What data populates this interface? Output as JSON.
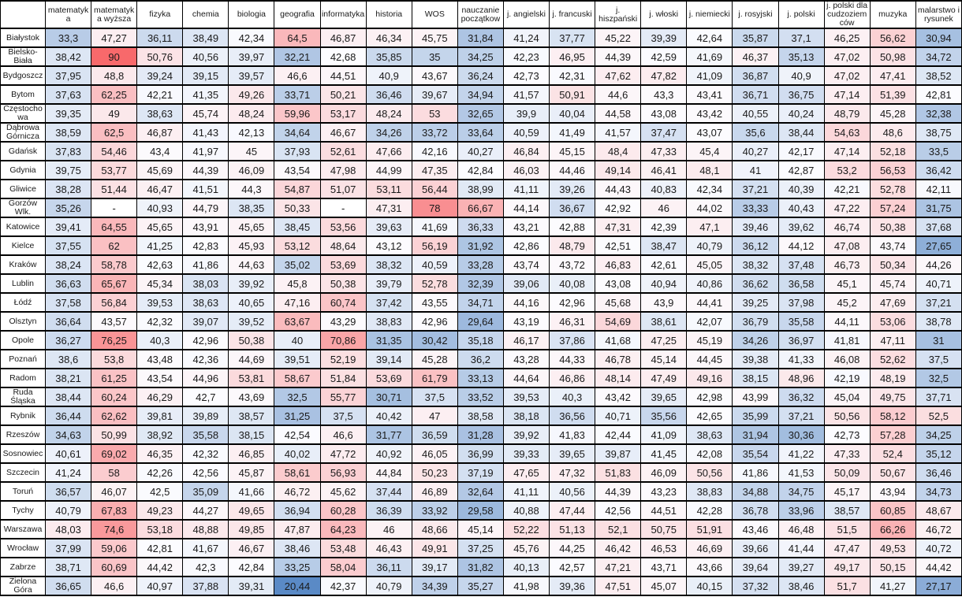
{
  "chart_data": {
    "type": "heatmap",
    "columns": [
      "matematyka",
      "matematyka wyższa",
      "fizyka",
      "chemia",
      "biologia",
      "geografia",
      "informatyka",
      "historia",
      "WOS",
      "nauczanie początkow",
      "j. angielski",
      "j. francuski",
      "j. hiszpański",
      "j. włoski",
      "j. niemiecki",
      "j. rosyjski",
      "j. polski",
      "j. polski dla cudzoziemców",
      "muzyka",
      "malarstwo i rysunek"
    ],
    "rows": [
      "Białystok",
      "Bielsko-Biała",
      "Bydgoszcz",
      "Bytom",
      "Częstochowa",
      "Dąbrowa Górnicza",
      "Gdańsk",
      "Gdynia",
      "Gliwice",
      "Gorzów Wlk.",
      "Katowice",
      "Kielce",
      "Kraków",
      "Lublin",
      "Łódź",
      "Olsztyn",
      "Opole",
      "Poznań",
      "Radom",
      "Ruda Śląska",
      "Rybnik",
      "Rzeszów",
      "Sosnowiec",
      "Szczecin",
      "Toruń",
      "Tychy",
      "Warszawa",
      "Wrocław",
      "Zabrze",
      "Zielona Góra"
    ],
    "values": [
      [
        "33,3",
        "47,27",
        "36,11",
        "38,49",
        "42,34",
        "64,5",
        "46,87",
        "46,34",
        "45,75",
        "31,84",
        "41,24",
        "37,77",
        "45,22",
        "39,39",
        "42,64",
        "35,87",
        "37,1",
        "46,25",
        "56,62",
        "30,94"
      ],
      [
        "38,42",
        "90",
        "50,76",
        "40,56",
        "39,97",
        "32,21",
        "42,68",
        "35,85",
        "35",
        "34,25",
        "42,23",
        "46,95",
        "44,39",
        "42,59",
        "41,69",
        "46,37",
        "35,13",
        "47,02",
        "50,98",
        "34,72"
      ],
      [
        "37,95",
        "48,8",
        "39,24",
        "39,15",
        "39,57",
        "46,6",
        "44,51",
        "40,9",
        "43,67",
        "36,24",
        "42,73",
        "42,31",
        "47,62",
        "47,82",
        "41,09",
        "36,87",
        "40,9",
        "47,02",
        "47,41",
        "38,52"
      ],
      [
        "37,63",
        "62,25",
        "42,21",
        "41,35",
        "49,26",
        "33,71",
        "50,21",
        "36,46",
        "39,67",
        "34,94",
        "41,57",
        "50,91",
        "44,6",
        "43,3",
        "43,41",
        "36,71",
        "36,75",
        "47,14",
        "51,39",
        "42,81"
      ],
      [
        "39,35",
        "49",
        "38,63",
        "45,74",
        "48,24",
        "59,96",
        "53,17",
        "48,24",
        "53",
        "32,65",
        "39,9",
        "40,04",
        "44,58",
        "43,08",
        "43,42",
        "40,55",
        "40,24",
        "48,79",
        "45,28",
        "32,38"
      ],
      [
        "38,59",
        "62,5",
        "46,87",
        "41,43",
        "42,13",
        "34,64",
        "46,67",
        "34,26",
        "33,72",
        "33,64",
        "40,59",
        "41,49",
        "41,57",
        "37,47",
        "43,07",
        "35,6",
        "38,44",
        "54,63",
        "48,6",
        "38,75"
      ],
      [
        "37,83",
        "54,46",
        "43,4",
        "41,97",
        "45",
        "37,93",
        "52,61",
        "47,66",
        "42,16",
        "40,27",
        "46,84",
        "45,15",
        "48,4",
        "47,33",
        "45,4",
        "40,27",
        "42,17",
        "47,14",
        "52,18",
        "33,5"
      ],
      [
        "39,75",
        "53,77",
        "45,69",
        "44,39",
        "46,09",
        "43,54",
        "47,98",
        "44,99",
        "47,35",
        "42,84",
        "46,03",
        "44,46",
        "49,14",
        "46,41",
        "48,1",
        "41",
        "42,87",
        "53,2",
        "56,53",
        "36,42"
      ],
      [
        "38,28",
        "51,44",
        "46,47",
        "41,51",
        "44,3",
        "54,87",
        "51,07",
        "53,11",
        "56,44",
        "38,99",
        "41,11",
        "39,26",
        "44,43",
        "40,83",
        "42,34",
        "37,21",
        "40,39",
        "42,21",
        "52,78",
        "42,11"
      ],
      [
        "35,26",
        "-",
        "40,93",
        "44,79",
        "38,35",
        "50,33",
        "-",
        "47,31",
        "78",
        "66,67",
        "44,14",
        "36,67",
        "42,92",
        "46",
        "44,02",
        "33,33",
        "40,43",
        "47,22",
        "57,24",
        "31,75"
      ],
      [
        "39,41",
        "64,55",
        "45,65",
        "43,91",
        "45,65",
        "38,45",
        "53,56",
        "39,63",
        "41,69",
        "36,33",
        "43,21",
        "42,88",
        "47,31",
        "42,39",
        "47,1",
        "39,46",
        "39,62",
        "46,74",
        "50,38",
        "37,68"
      ],
      [
        "37,55",
        "62",
        "41,25",
        "42,83",
        "45,93",
        "53,12",
        "48,64",
        "43,12",
        "56,19",
        "31,92",
        "42,86",
        "48,79",
        "42,51",
        "38,47",
        "40,79",
        "36,12",
        "44,12",
        "47,08",
        "43,74",
        "27,65"
      ],
      [
        "38,24",
        "58,78",
        "42,63",
        "41,86",
        "44,63",
        "35,02",
        "53,69",
        "38,32",
        "40,59",
        "33,28",
        "43,74",
        "43,72",
        "46,83",
        "42,61",
        "45,05",
        "38,32",
        "37,48",
        "46,73",
        "50,34",
        "44,26"
      ],
      [
        "36,63",
        "65,67",
        "45,34",
        "38,03",
        "39,92",
        "45,8",
        "50,38",
        "39,79",
        "52,78",
        "32,39",
        "39,06",
        "40,08",
        "43,08",
        "40,94",
        "40,86",
        "36,62",
        "36,58",
        "45,1",
        "45,74",
        "40,71"
      ],
      [
        "37,58",
        "56,84",
        "39,53",
        "38,63",
        "40,65",
        "47,16",
        "60,74",
        "37,42",
        "43,55",
        "34,71",
        "44,16",
        "42,96",
        "45,68",
        "43,9",
        "44,41",
        "39,25",
        "37,98",
        "45,2",
        "47,69",
        "37,21"
      ],
      [
        "36,64",
        "43,57",
        "42,32",
        "39,07",
        "39,52",
        "63,67",
        "43,29",
        "38,83",
        "42,96",
        "29,64",
        "43,19",
        "46,31",
        "54,69",
        "38,61",
        "42,07",
        "36,79",
        "35,58",
        "44,11",
        "53,06",
        "38,78"
      ],
      [
        "36,27",
        "76,25",
        "40,3",
        "42,96",
        "50,38",
        "40",
        "70,86",
        "31,35",
        "30,42",
        "35,18",
        "46,17",
        "37,86",
        "41,68",
        "47,25",
        "45,19",
        "34,26",
        "36,97",
        "41,81",
        "47,11",
        "31"
      ],
      [
        "38,6",
        "53,8",
        "43,48",
        "42,36",
        "44,69",
        "39,51",
        "52,19",
        "39,14",
        "45,28",
        "36,2",
        "43,28",
        "44,33",
        "46,78",
        "45,14",
        "44,45",
        "39,38",
        "41,33",
        "46,08",
        "52,62",
        "37,5"
      ],
      [
        "38,21",
        "61,25",
        "43,54",
        "44,96",
        "53,81",
        "58,67",
        "51,84",
        "53,69",
        "61,79",
        "33,13",
        "44,64",
        "46,86",
        "48,14",
        "47,49",
        "49,16",
        "38,15",
        "48,96",
        "42,19",
        "48,19",
        "32,5"
      ],
      [
        "38,44",
        "60,24",
        "46,29",
        "42,7",
        "43,69",
        "32,5",
        "55,77",
        "30,71",
        "37,5",
        "33,52",
        "39,53",
        "40,3",
        "43,42",
        "39,65",
        "42,98",
        "43,99",
        "36,32",
        "45,04",
        "49,75",
        "37,71"
      ],
      [
        "36,44",
        "62,62",
        "39,81",
        "39,89",
        "38,57",
        "31,25",
        "37,5",
        "40,42",
        "47",
        "38,58",
        "38,18",
        "36,56",
        "40,71",
        "35,56",
        "42,65",
        "35,99",
        "37,21",
        "50,56",
        "58,12",
        "52,5"
      ],
      [
        "34,63",
        "50,99",
        "38,92",
        "35,58",
        "38,15",
        "42,54",
        "46,6",
        "31,77",
        "36,59",
        "31,28",
        "39,92",
        "41,83",
        "42,44",
        "41,09",
        "38,63",
        "31,94",
        "30,36",
        "42,73",
        "57,28",
        "34,25"
      ],
      [
        "40,61",
        "69,02",
        "46,35",
        "42,32",
        "46,85",
        "40,02",
        "47,72",
        "40,92",
        "46,05",
        "36,99",
        "39,33",
        "39,65",
        "39,87",
        "41,45",
        "42,08",
        "35,54",
        "41,22",
        "47,33",
        "52,4",
        "35,12"
      ],
      [
        "41,24",
        "58",
        "42,26",
        "42,56",
        "45,87",
        "58,61",
        "56,93",
        "44,84",
        "50,23",
        "37,19",
        "47,65",
        "47,32",
        "51,83",
        "46,09",
        "50,56",
        "41,86",
        "41,53",
        "50,09",
        "50,67",
        "36,46"
      ],
      [
        "36,57",
        "46,07",
        "42,5",
        "35,09",
        "41,66",
        "46,72",
        "45,62",
        "37,44",
        "46,89",
        "32,64",
        "41,11",
        "40,56",
        "44,39",
        "43,23",
        "38,83",
        "34,88",
        "34,75",
        "45,17",
        "43,94",
        "34,73"
      ],
      [
        "40,79",
        "67,83",
        "49,23",
        "44,27",
        "49,65",
        "36,94",
        "60,28",
        "36,39",
        "33,92",
        "29,58",
        "40,88",
        "47,44",
        "42,56",
        "44,51",
        "42,28",
        "36,78",
        "33,96",
        "38,57",
        "60,85",
        "48,67"
      ],
      [
        "48,03",
        "74,6",
        "53,18",
        "48,88",
        "49,85",
        "47,87",
        "64,23",
        "46",
        "48,66",
        "45,14",
        "52,22",
        "51,13",
        "52,1",
        "50,75",
        "51,91",
        "43,46",
        "46,48",
        "51,5",
        "66,26",
        "46,72"
      ],
      [
        "37,99",
        "59,06",
        "42,81",
        "41,67",
        "46,67",
        "38,46",
        "53,48",
        "46,43",
        "49,91",
        "37,25",
        "45,76",
        "44,25",
        "46,42",
        "46,53",
        "46,69",
        "39,66",
        "41,44",
        "47,47",
        "49,53",
        "40,72"
      ],
      [
        "38,71",
        "60,69",
        "44,42",
        "42,3",
        "42,84",
        "33,25",
        "58,04",
        "36,11",
        "39,17",
        "31,82",
        "40,13",
        "42,57",
        "47,21",
        "43,71",
        "43,66",
        "39,64",
        "39,27",
        "49,17",
        "50,15",
        "44,42"
      ],
      [
        "36,65",
        "46,6",
        "40,97",
        "37,88",
        "39,31",
        "20,44",
        "42,37",
        "40,79",
        "34,39",
        "35,27",
        "41,98",
        "39,36",
        "47,51",
        "45,07",
        "40,15",
        "37,32",
        "38,46",
        "51,7",
        "41,27",
        "27,17"
      ]
    ],
    "missing_value_text": "-",
    "color_scale": {
      "low_color": "#5A8AC6",
      "mid_color": "#FCFCFF",
      "high_color": "#F8696B",
      "missing_color": "#FFFFFF",
      "low_value": 20.44,
      "high_value": 90,
      "mid_rule": "median"
    },
    "layout": {
      "grid_border_color": "#000000",
      "legend_position": "none"
    }
  }
}
